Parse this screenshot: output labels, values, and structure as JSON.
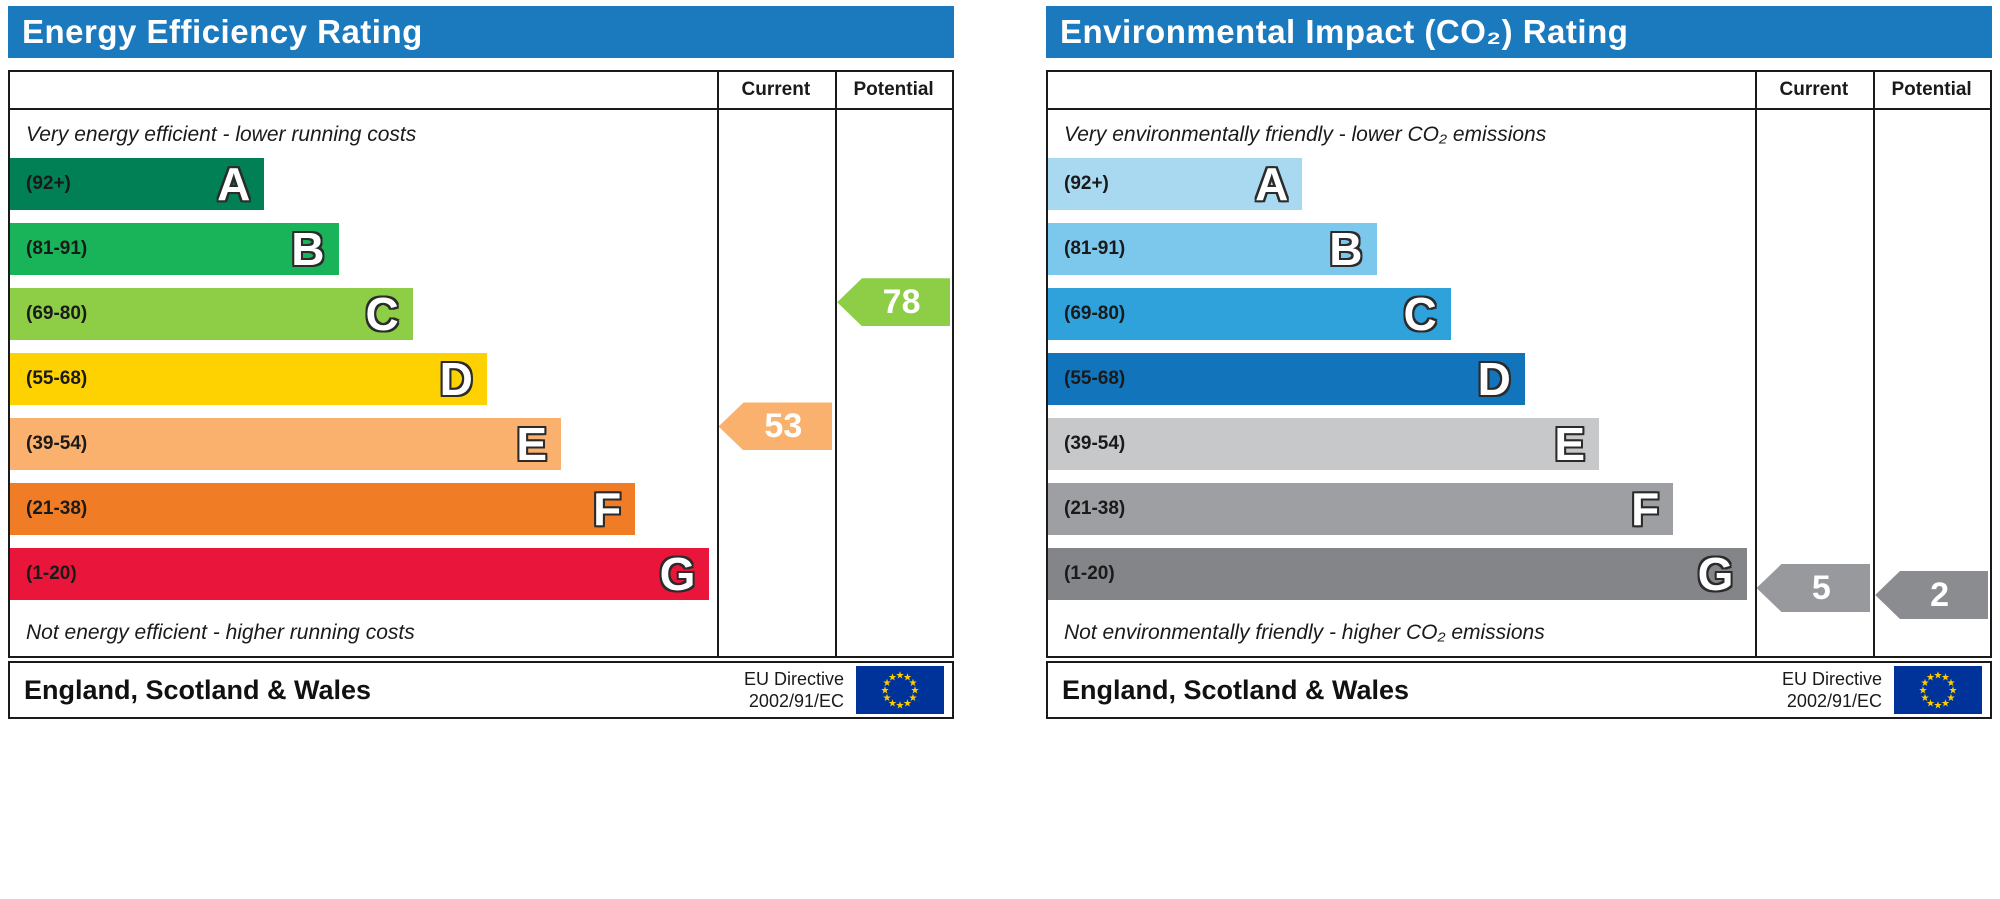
{
  "chart_data": [
    {
      "type": "epc-rating-bands",
      "title": "Energy Efficiency Rating",
      "header_bg": "#1b7abd",
      "column_headers": [
        "Current",
        "Potential"
      ],
      "top_note": "Very energy efficient - lower running costs",
      "bottom_note": "Not energy efficient - higher running costs",
      "bands": [
        {
          "letter": "A",
          "range": "(92+)",
          "min": 92,
          "max": 100,
          "color": "#008054",
          "width_pct": 36
        },
        {
          "letter": "B",
          "range": "(81-91)",
          "min": 81,
          "max": 91,
          "color": "#19b459",
          "width_pct": 46.5
        },
        {
          "letter": "C",
          "range": "(69-80)",
          "min": 69,
          "max": 80,
          "color": "#8dce46",
          "width_pct": 57
        },
        {
          "letter": "D",
          "range": "(55-68)",
          "min": 55,
          "max": 68,
          "color": "#fed100",
          "width_pct": 67.5
        },
        {
          "letter": "E",
          "range": "(39-54)",
          "min": 39,
          "max": 54,
          "color": "#fbb16e",
          "width_pct": 78
        },
        {
          "letter": "F",
          "range": "(21-38)",
          "min": 21,
          "max": 38,
          "color": "#f07d26",
          "width_pct": 88.5
        },
        {
          "letter": "G",
          "range": "(1-20)",
          "min": 1,
          "max": 20,
          "color": "#e9153b",
          "width_pct": 99
        }
      ],
      "current": {
        "value": 53,
        "band": "E",
        "band_index": 4,
        "arrow_color": "#fbb16e"
      },
      "potential": {
        "value": 78,
        "band": "C",
        "band_index": 2,
        "arrow_color": "#8dce46"
      },
      "region_label": "England, Scotland & Wales",
      "directive_lines": [
        "EU Directive",
        "2002/91/EC"
      ],
      "eu_flag_colors": {
        "field": "#003399",
        "stars": "#ffcc00"
      }
    },
    {
      "type": "epc-rating-bands",
      "title": "Environmental Impact (CO₂) Rating",
      "header_bg": "#1b7abd",
      "column_headers": [
        "Current",
        "Potential"
      ],
      "top_note": "Very environmentally friendly - lower CO₂ emissions",
      "bottom_note": "Not environmentally friendly - higher CO₂ emissions",
      "bands": [
        {
          "letter": "A",
          "range": "(92+)",
          "min": 92,
          "max": 100,
          "color": "#a8d9f0",
          "width_pct": 36
        },
        {
          "letter": "B",
          "range": "(81-91)",
          "min": 81,
          "max": 91,
          "color": "#7cc7ec",
          "width_pct": 46.5
        },
        {
          "letter": "C",
          "range": "(69-80)",
          "min": 69,
          "max": 80,
          "color": "#2fa2db",
          "width_pct": 57
        },
        {
          "letter": "D",
          "range": "(55-68)",
          "min": 55,
          "max": 68,
          "color": "#1274bb",
          "width_pct": 67.5
        },
        {
          "letter": "E",
          "range": "(39-54)",
          "min": 39,
          "max": 54,
          "color": "#c7c8ca",
          "width_pct": 78
        },
        {
          "letter": "F",
          "range": "(21-38)",
          "min": 21,
          "max": 38,
          "color": "#9d9fa2",
          "width_pct": 88.5
        },
        {
          "letter": "G",
          "range": "(1-20)",
          "min": 1,
          "max": 20,
          "color": "#838589",
          "width_pct": 99
        }
      ],
      "current": {
        "value": 5,
        "band": "G",
        "band_index": 6,
        "arrow_color": "#98999c"
      },
      "potential": {
        "value": 2,
        "band": "G",
        "band_index": 6,
        "arrow_color": "#8a8c8f"
      },
      "region_label": "England, Scotland & Wales",
      "directive_lines": [
        "EU Directive",
        "2002/91/EC"
      ],
      "eu_flag_colors": {
        "field": "#003399",
        "stars": "#ffcc00"
      }
    }
  ]
}
